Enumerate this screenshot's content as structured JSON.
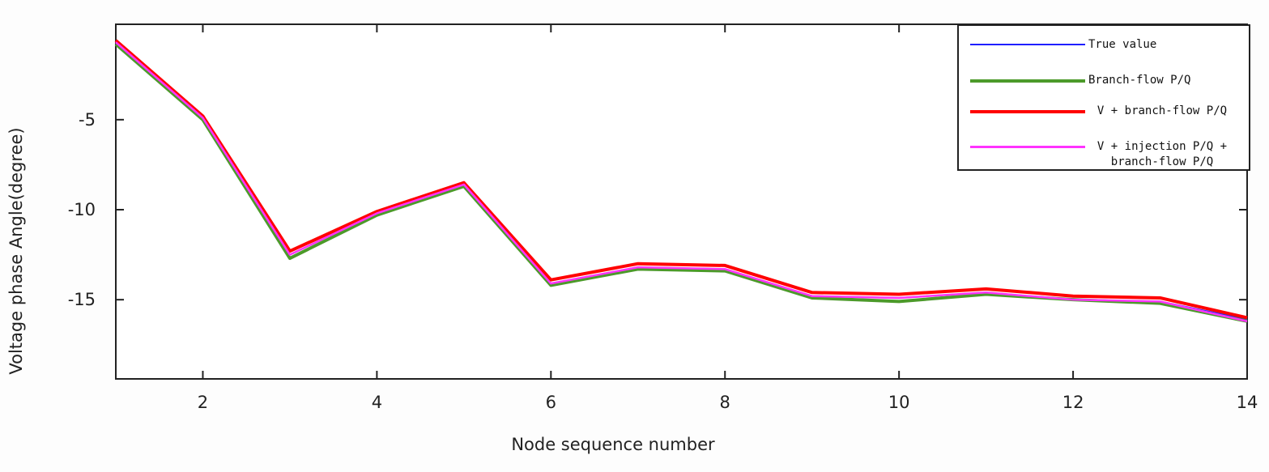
{
  "chart_data": {
    "type": "line",
    "xlabel": "Node sequence number",
    "ylabel": "Voltage phase Angle(degree)",
    "x": [
      1,
      2,
      3,
      4,
      5,
      6,
      7,
      8,
      9,
      10,
      11,
      12,
      13,
      14
    ],
    "xlim": [
      1,
      14
    ],
    "xticks": [
      2,
      4,
      6,
      8,
      10,
      12,
      14
    ],
    "ylim": [
      -19.4,
      0.3
    ],
    "yticks": [
      -5,
      -10,
      -15
    ],
    "grid": false,
    "legend": "upper right",
    "series": [
      {
        "name": "True value",
        "color": "#1f1fff",
        "width": 2,
        "values": [
          -0.8,
          -4.9,
          -12.5,
          -10.2,
          -8.6,
          -14.1,
          -13.2,
          -13.3,
          -14.8,
          -14.9,
          -14.6,
          -15.0,
          -15.1,
          -16.1
        ]
      },
      {
        "name": "Branch-flow P/Q",
        "color": "#4c9a2a",
        "width": 4,
        "values": [
          -0.8,
          -5.0,
          -12.7,
          -10.3,
          -8.7,
          -14.2,
          -13.3,
          -13.4,
          -14.9,
          -15.1,
          -14.7,
          -15.0,
          -15.2,
          -16.2
        ]
      },
      {
        "name": "V + branch-flow P/Q",
        "color": "#ff0000",
        "width": 4,
        "values": [
          -0.6,
          -4.8,
          -12.3,
          -10.1,
          -8.5,
          -13.9,
          -13.0,
          -13.1,
          -14.6,
          -14.7,
          -14.4,
          -14.8,
          -14.9,
          -16.0
        ]
      },
      {
        "name": "V + injection P/Q + branch-flow P/Q",
        "color": "#ff33ff",
        "width": 2.5,
        "values": [
          -0.7,
          -4.9,
          -12.5,
          -10.2,
          -8.6,
          -14.1,
          -13.2,
          -13.3,
          -14.8,
          -14.9,
          -14.6,
          -15.0,
          -15.1,
          -16.2
        ]
      }
    ]
  }
}
